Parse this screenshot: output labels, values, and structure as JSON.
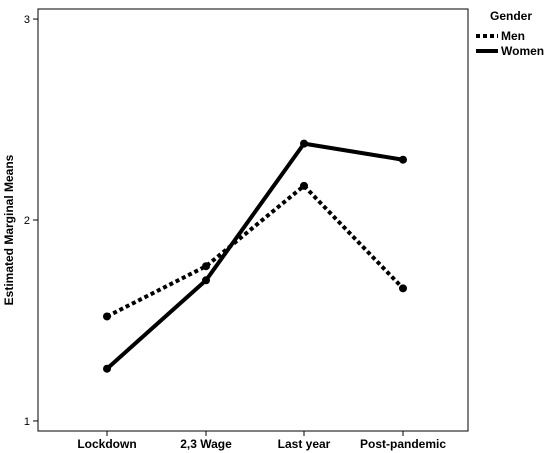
{
  "chart_data": {
    "type": "line",
    "ylabel": "Estimated Marginal Means",
    "xlabel": "",
    "categories": [
      "Lockdown",
      "2,3 Wage",
      "Last year",
      "Post-pandemic"
    ],
    "ylim": [
      0.95,
      3.05
    ],
    "yticks": [
      1,
      2,
      3
    ],
    "grid": false,
    "legend": {
      "title": "Gender",
      "position": "top-right"
    },
    "series": [
      {
        "name": "Men",
        "style": "dotted",
        "color": "#000000",
        "values": [
          1.52,
          1.77,
          2.17,
          1.66
        ]
      },
      {
        "name": "Women",
        "style": "solid",
        "color": "#000000",
        "values": [
          1.26,
          1.7,
          2.38,
          2.3
        ]
      }
    ]
  }
}
